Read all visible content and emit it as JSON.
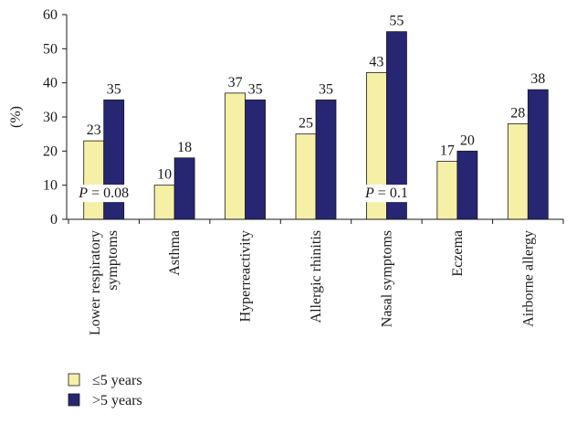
{
  "chart_data": {
    "type": "bar",
    "ylabel": "(%)",
    "ylim": [
      0,
      60
    ],
    "yticks": [
      0,
      10,
      20,
      30,
      40,
      50,
      60
    ],
    "grid": false,
    "legend_position": "bottom-left",
    "categories": [
      [
        "Lower respiratory",
        "symptoms"
      ],
      [
        "Asthma"
      ],
      [
        "Hyperreactivity"
      ],
      [
        "Allergic rhinitis"
      ],
      [
        "Nasal symptoms"
      ],
      [
        "Eczema"
      ],
      [
        "Airborne allergy"
      ]
    ],
    "series": [
      {
        "name": "≤5 years",
        "color": "#f5f0a6",
        "values": [
          23,
          10,
          37,
          25,
          43,
          17,
          28
        ]
      },
      {
        "name": ">5 years",
        "color": "#262673",
        "values": [
          35,
          18,
          35,
          35,
          55,
          20,
          38
        ]
      }
    ],
    "annotations": [
      {
        "category_index": 0,
        "italic": "P",
        "text": " = 0.08",
        "y": 8
      },
      {
        "category_index": 4,
        "italic": "P",
        "text": " = 0.1",
        "y": 8
      }
    ]
  }
}
